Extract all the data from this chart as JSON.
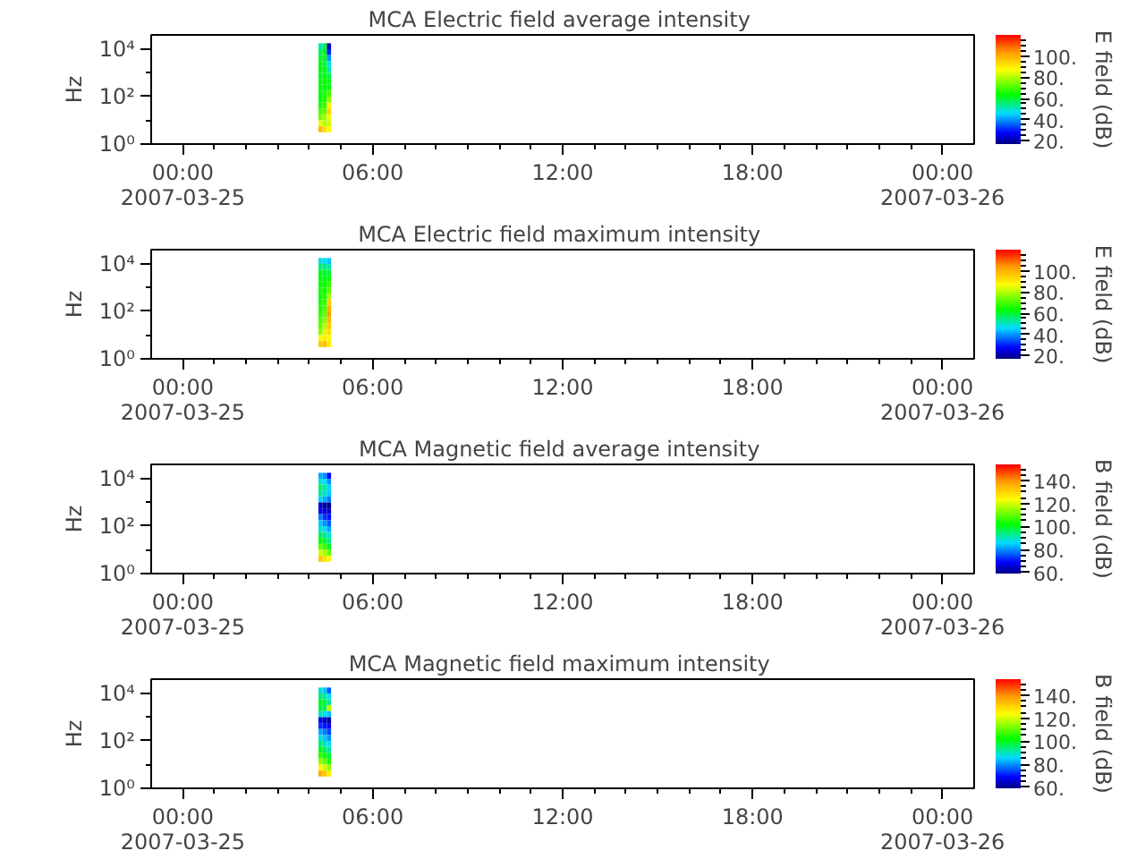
{
  "chart_data": [
    {
      "type": "scatter",
      "marker": "square",
      "title": "MCA  Electric field average intensity",
      "ylabel": "Hz",
      "clabel": "E field (dB)",
      "x": [
        "2007-03-25T04:21",
        "2007-03-25T04:29",
        "2007-03-25T04:37",
        "2007-03-25T04:21",
        "2007-03-25T04:29",
        "2007-03-25T04:37",
        "2007-03-25T04:21",
        "2007-03-25T04:29",
        "2007-03-25T04:37",
        "2007-03-25T04:21",
        "2007-03-25T04:29",
        "2007-03-25T04:37",
        "2007-03-25T04:21",
        "2007-03-25T04:29",
        "2007-03-25T04:37",
        "2007-03-25T04:21",
        "2007-03-25T04:29",
        "2007-03-25T04:37",
        "2007-03-25T04:21",
        "2007-03-25T04:29",
        "2007-03-25T04:37",
        "2007-03-25T04:21",
        "2007-03-25T04:29",
        "2007-03-25T04:37",
        "2007-03-25T04:21",
        "2007-03-25T04:29",
        "2007-03-25T04:37",
        "2007-03-25T04:21",
        "2007-03-25T04:29",
        "2007-03-25T04:37",
        "2007-03-25T04:21",
        "2007-03-25T04:29",
        "2007-03-25T04:37",
        "2007-03-25T04:21",
        "2007-03-25T04:29",
        "2007-03-25T04:37",
        "2007-03-25T04:21",
        "2007-03-25T04:29",
        "2007-03-25T04:37",
        "2007-03-25T04:21",
        "2007-03-25T04:29",
        "2007-03-25T04:37",
        "2007-03-25T04:21",
        "2007-03-25T04:29",
        "2007-03-25T04:37"
      ],
      "values": [
        13300,
        13300,
        13300,
        7500,
        7500,
        7500,
        4200,
        4200,
        4200,
        2400,
        2400,
        2400,
        1330,
        1330,
        1330,
        750,
        750,
        750,
        420,
        420,
        420,
        240,
        240,
        240,
        133,
        133,
        133,
        75,
        75,
        75,
        42,
        42,
        42,
        24,
        24,
        24,
        13.3,
        13.3,
        13.3,
        7.5,
        7.5,
        7.5,
        4.2,
        4.2,
        4.2
      ],
      "cvalues": [
        50,
        60,
        22,
        58,
        62,
        30,
        60,
        62,
        40,
        62,
        60,
        48,
        62,
        62,
        52,
        60,
        64,
        58,
        62,
        64,
        62,
        64,
        62,
        64,
        62,
        66,
        70,
        64,
        66,
        76,
        66,
        68,
        88,
        70,
        72,
        95,
        74,
        78,
        85,
        85,
        80,
        82,
        98,
        92,
        88
      ],
      "clim": [
        17,
        120
      ],
      "cticks": [
        {
          "value": 20,
          "label": "20."
        },
        {
          "value": 25,
          "label": null
        },
        {
          "value": 30,
          "label": null
        },
        {
          "value": 35,
          "label": null
        },
        {
          "value": 40,
          "label": "40."
        },
        {
          "value": 45,
          "label": null
        },
        {
          "value": 50,
          "label": null
        },
        {
          "value": 55,
          "label": null
        },
        {
          "value": 60,
          "label": "60."
        },
        {
          "value": 65,
          "label": null
        },
        {
          "value": 70,
          "label": null
        },
        {
          "value": 75,
          "label": null
        },
        {
          "value": 80,
          "label": "80."
        },
        {
          "value": 85,
          "label": null
        },
        {
          "value": 90,
          "label": null
        },
        {
          "value": 95,
          "label": null
        },
        {
          "value": 100,
          "label": "100."
        },
        {
          "value": 105,
          "label": null
        },
        {
          "value": 110,
          "label": null
        },
        {
          "value": 115,
          "label": null
        }
      ],
      "xlim": [
        "2007-03-24T23:00",
        "2007-03-26T01:00"
      ],
      "xticks": [
        {
          "value": "2007-03-25T00:00",
          "label": "00:00\n2007-03-25"
        },
        {
          "value": "2007-03-25T01:00",
          "label": null
        },
        {
          "value": "2007-03-25T02:00",
          "label": null
        },
        {
          "value": "2007-03-25T03:00",
          "label": null
        },
        {
          "value": "2007-03-25T04:00",
          "label": null
        },
        {
          "value": "2007-03-25T05:00",
          "label": null
        },
        {
          "value": "2007-03-25T06:00",
          "label": "06:00"
        },
        {
          "value": "2007-03-25T07:00",
          "label": null
        },
        {
          "value": "2007-03-25T08:00",
          "label": null
        },
        {
          "value": "2007-03-25T09:00",
          "label": null
        },
        {
          "value": "2007-03-25T10:00",
          "label": null
        },
        {
          "value": "2007-03-25T11:00",
          "label": null
        },
        {
          "value": "2007-03-25T12:00",
          "label": "12:00"
        },
        {
          "value": "2007-03-25T13:00",
          "label": null
        },
        {
          "value": "2007-03-25T14:00",
          "label": null
        },
        {
          "value": "2007-03-25T15:00",
          "label": null
        },
        {
          "value": "2007-03-25T16:00",
          "label": null
        },
        {
          "value": "2007-03-25T17:00",
          "label": null
        },
        {
          "value": "2007-03-25T18:00",
          "label": "18:00"
        },
        {
          "value": "2007-03-25T19:00",
          "label": null
        },
        {
          "value": "2007-03-25T20:00",
          "label": null
        },
        {
          "value": "2007-03-25T21:00",
          "label": null
        },
        {
          "value": "2007-03-25T22:00",
          "label": null
        },
        {
          "value": "2007-03-25T23:00",
          "label": null
        },
        {
          "value": "2007-03-26T00:00",
          "label": "00:00\n2007-03-26"
        }
      ],
      "ylim": [
        1,
        40000
      ],
      "yticks": [
        {
          "value": 1,
          "label": "10⁰"
        },
        {
          "value": 10,
          "label": null
        },
        {
          "value": 100,
          "label": "10²"
        },
        {
          "value": 1000,
          "label": null
        },
        {
          "value": 10000,
          "label": "10⁴"
        }
      ],
      "log": true
    },
    {
      "type": "scatter",
      "marker": "square",
      "title": "MCA  Electric field maximum intensity",
      "ylabel": "Hz",
      "clabel": "E field (dB)",
      "x": [
        "2007-03-25T04:21",
        "2007-03-25T04:29",
        "2007-03-25T04:37",
        "2007-03-25T04:21",
        "2007-03-25T04:29",
        "2007-03-25T04:37",
        "2007-03-25T04:21",
        "2007-03-25T04:29",
        "2007-03-25T04:37",
        "2007-03-25T04:21",
        "2007-03-25T04:29",
        "2007-03-25T04:37",
        "2007-03-25T04:21",
        "2007-03-25T04:29",
        "2007-03-25T04:37",
        "2007-03-25T04:21",
        "2007-03-25T04:29",
        "2007-03-25T04:37",
        "2007-03-25T04:21",
        "2007-03-25T04:29",
        "2007-03-25T04:37",
        "2007-03-25T04:21",
        "2007-03-25T04:29",
        "2007-03-25T04:37",
        "2007-03-25T04:21",
        "2007-03-25T04:29",
        "2007-03-25T04:37",
        "2007-03-25T04:21",
        "2007-03-25T04:29",
        "2007-03-25T04:37",
        "2007-03-25T04:21",
        "2007-03-25T04:29",
        "2007-03-25T04:37",
        "2007-03-25T04:21",
        "2007-03-25T04:29",
        "2007-03-25T04:37",
        "2007-03-25T04:21",
        "2007-03-25T04:29",
        "2007-03-25T04:37",
        "2007-03-25T04:21",
        "2007-03-25T04:29",
        "2007-03-25T04:37",
        "2007-03-25T04:21",
        "2007-03-25T04:29",
        "2007-03-25T04:37"
      ],
      "values": [
        13300,
        13300,
        13300,
        7500,
        7500,
        7500,
        4200,
        4200,
        4200,
        2400,
        2400,
        2400,
        1330,
        1330,
        1330,
        750,
        750,
        750,
        420,
        420,
        420,
        240,
        240,
        240,
        133,
        133,
        133,
        75,
        75,
        75,
        42,
        42,
        42,
        24,
        24,
        24,
        13.3,
        13.3,
        13.3,
        7.5,
        7.5,
        7.5,
        4.2,
        4.2,
        4.2
      ],
      "cvalues": [
        48,
        46,
        44,
        56,
        54,
        52,
        62,
        60,
        60,
        64,
        62,
        64,
        64,
        64,
        68,
        66,
        64,
        72,
        64,
        66,
        78,
        66,
        68,
        95,
        66,
        70,
        100,
        68,
        72,
        102,
        70,
        76,
        98,
        72,
        80,
        96,
        76,
        84,
        92,
        86,
        90,
        88,
        96,
        98,
        90
      ],
      "clim": [
        17,
        120
      ],
      "cticks": [
        {
          "value": 20,
          "label": "20."
        },
        {
          "value": 25,
          "label": null
        },
        {
          "value": 30,
          "label": null
        },
        {
          "value": 35,
          "label": null
        },
        {
          "value": 40,
          "label": "40."
        },
        {
          "value": 45,
          "label": null
        },
        {
          "value": 50,
          "label": null
        },
        {
          "value": 55,
          "label": null
        },
        {
          "value": 60,
          "label": "60."
        },
        {
          "value": 65,
          "label": null
        },
        {
          "value": 70,
          "label": null
        },
        {
          "value": 75,
          "label": null
        },
        {
          "value": 80,
          "label": "80."
        },
        {
          "value": 85,
          "label": null
        },
        {
          "value": 90,
          "label": null
        },
        {
          "value": 95,
          "label": null
        },
        {
          "value": 100,
          "label": "100."
        },
        {
          "value": 105,
          "label": null
        },
        {
          "value": 110,
          "label": null
        },
        {
          "value": 115,
          "label": null
        }
      ],
      "xlim": [
        "2007-03-24T23:00",
        "2007-03-26T01:00"
      ],
      "xticks": [
        {
          "value": "2007-03-25T00:00",
          "label": "00:00\n2007-03-25"
        },
        {
          "value": "2007-03-25T01:00",
          "label": null
        },
        {
          "value": "2007-03-25T02:00",
          "label": null
        },
        {
          "value": "2007-03-25T03:00",
          "label": null
        },
        {
          "value": "2007-03-25T04:00",
          "label": null
        },
        {
          "value": "2007-03-25T05:00",
          "label": null
        },
        {
          "value": "2007-03-25T06:00",
          "label": "06:00"
        },
        {
          "value": "2007-03-25T07:00",
          "label": null
        },
        {
          "value": "2007-03-25T08:00",
          "label": null
        },
        {
          "value": "2007-03-25T09:00",
          "label": null
        },
        {
          "value": "2007-03-25T10:00",
          "label": null
        },
        {
          "value": "2007-03-25T11:00",
          "label": null
        },
        {
          "value": "2007-03-25T12:00",
          "label": "12:00"
        },
        {
          "value": "2007-03-25T13:00",
          "label": null
        },
        {
          "value": "2007-03-25T14:00",
          "label": null
        },
        {
          "value": "2007-03-25T15:00",
          "label": null
        },
        {
          "value": "2007-03-25T16:00",
          "label": null
        },
        {
          "value": "2007-03-25T17:00",
          "label": null
        },
        {
          "value": "2007-03-25T18:00",
          "label": "18:00"
        },
        {
          "value": "2007-03-25T19:00",
          "label": null
        },
        {
          "value": "2007-03-25T20:00",
          "label": null
        },
        {
          "value": "2007-03-25T21:00",
          "label": null
        },
        {
          "value": "2007-03-25T22:00",
          "label": null
        },
        {
          "value": "2007-03-25T23:00",
          "label": null
        },
        {
          "value": "2007-03-26T00:00",
          "label": "00:00\n2007-03-26"
        }
      ],
      "ylim": [
        1,
        40000
      ],
      "yticks": [
        {
          "value": 1,
          "label": "10⁰"
        },
        {
          "value": 10,
          "label": null
        },
        {
          "value": 100,
          "label": "10²"
        },
        {
          "value": 1000,
          "label": null
        },
        {
          "value": 10000,
          "label": "10⁴"
        }
      ],
      "log": true
    },
    {
      "type": "scatter",
      "marker": "square",
      "title": "MCA  Magnetic field average intensity",
      "ylabel": "Hz",
      "clabel": "B field (dB)",
      "x": [
        "2007-03-25T04:21",
        "2007-03-25T04:29",
        "2007-03-25T04:37",
        "2007-03-25T04:21",
        "2007-03-25T04:29",
        "2007-03-25T04:37",
        "2007-03-25T04:21",
        "2007-03-25T04:29",
        "2007-03-25T04:37",
        "2007-03-25T04:21",
        "2007-03-25T04:29",
        "2007-03-25T04:37",
        "2007-03-25T04:21",
        "2007-03-25T04:29",
        "2007-03-25T04:37",
        "2007-03-25T04:21",
        "2007-03-25T04:29",
        "2007-03-25T04:37",
        "2007-03-25T04:21",
        "2007-03-25T04:29",
        "2007-03-25T04:37",
        "2007-03-25T04:21",
        "2007-03-25T04:29",
        "2007-03-25T04:37",
        "2007-03-25T04:21",
        "2007-03-25T04:29",
        "2007-03-25T04:37",
        "2007-03-25T04:21",
        "2007-03-25T04:29",
        "2007-03-25T04:37",
        "2007-03-25T04:21",
        "2007-03-25T04:29",
        "2007-03-25T04:37",
        "2007-03-25T04:21",
        "2007-03-25T04:29",
        "2007-03-25T04:37",
        "2007-03-25T04:21",
        "2007-03-25T04:29",
        "2007-03-25T04:37",
        "2007-03-25T04:21",
        "2007-03-25T04:29",
        "2007-03-25T04:37",
        "2007-03-25T04:21",
        "2007-03-25T04:29",
        "2007-03-25T04:37"
      ],
      "values": [
        13300,
        13300,
        13300,
        7500,
        7500,
        7500,
        4200,
        4200,
        4200,
        2400,
        2400,
        2400,
        1330,
        1330,
        1330,
        750,
        750,
        750,
        420,
        420,
        420,
        240,
        240,
        240,
        133,
        133,
        133,
        75,
        75,
        75,
        42,
        42,
        42,
        24,
        24,
        24,
        13.3,
        13.3,
        13.3,
        7.5,
        7.5,
        7.5,
        4.2,
        4.2,
        4.2
      ],
      "cvalues": [
        82,
        80,
        68,
        88,
        86,
        80,
        95,
        92,
        85,
        92,
        88,
        84,
        85,
        82,
        78,
        64,
        62,
        60,
        68,
        66,
        64,
        78,
        72,
        70,
        84,
        80,
        76,
        90,
        86,
        82,
        96,
        92,
        88,
        102,
        98,
        94,
        110,
        106,
        100,
        120,
        116,
        110,
        132,
        128,
        124
      ],
      "clim": [
        59,
        154
      ],
      "cticks": [
        {
          "value": 60,
          "label": "60."
        },
        {
          "value": 65,
          "label": null
        },
        {
          "value": 70,
          "label": null
        },
        {
          "value": 75,
          "label": null
        },
        {
          "value": 80,
          "label": "80."
        },
        {
          "value": 85,
          "label": null
        },
        {
          "value": 90,
          "label": null
        },
        {
          "value": 95,
          "label": null
        },
        {
          "value": 100,
          "label": "100."
        },
        {
          "value": 105,
          "label": null
        },
        {
          "value": 110,
          "label": null
        },
        {
          "value": 115,
          "label": null
        },
        {
          "value": 120,
          "label": "120."
        },
        {
          "value": 125,
          "label": null
        },
        {
          "value": 130,
          "label": null
        },
        {
          "value": 135,
          "label": null
        },
        {
          "value": 140,
          "label": "140."
        },
        {
          "value": 145,
          "label": null
        },
        {
          "value": 150,
          "label": null
        }
      ],
      "xlim": [
        "2007-03-24T23:00",
        "2007-03-26T01:00"
      ],
      "xticks": [
        {
          "value": "2007-03-25T00:00",
          "label": "00:00\n2007-03-25"
        },
        {
          "value": "2007-03-25T01:00",
          "label": null
        },
        {
          "value": "2007-03-25T02:00",
          "label": null
        },
        {
          "value": "2007-03-25T03:00",
          "label": null
        },
        {
          "value": "2007-03-25T04:00",
          "label": null
        },
        {
          "value": "2007-03-25T05:00",
          "label": null
        },
        {
          "value": "2007-03-25T06:00",
          "label": "06:00"
        },
        {
          "value": "2007-03-25T07:00",
          "label": null
        },
        {
          "value": "2007-03-25T08:00",
          "label": null
        },
        {
          "value": "2007-03-25T09:00",
          "label": null
        },
        {
          "value": "2007-03-25T10:00",
          "label": null
        },
        {
          "value": "2007-03-25T11:00",
          "label": null
        },
        {
          "value": "2007-03-25T12:00",
          "label": "12:00"
        },
        {
          "value": "2007-03-25T13:00",
          "label": null
        },
        {
          "value": "2007-03-25T14:00",
          "label": null
        },
        {
          "value": "2007-03-25T15:00",
          "label": null
        },
        {
          "value": "2007-03-25T16:00",
          "label": null
        },
        {
          "value": "2007-03-25T17:00",
          "label": null
        },
        {
          "value": "2007-03-25T18:00",
          "label": "18:00"
        },
        {
          "value": "2007-03-25T19:00",
          "label": null
        },
        {
          "value": "2007-03-25T20:00",
          "label": null
        },
        {
          "value": "2007-03-25T21:00",
          "label": null
        },
        {
          "value": "2007-03-25T22:00",
          "label": null
        },
        {
          "value": "2007-03-25T23:00",
          "label": null
        },
        {
          "value": "2007-03-26T00:00",
          "label": "00:00\n2007-03-26"
        }
      ],
      "ylim": [
        1,
        40000
      ],
      "yticks": [
        {
          "value": 1,
          "label": "10⁰"
        },
        {
          "value": 10,
          "label": null
        },
        {
          "value": 100,
          "label": "10²"
        },
        {
          "value": 1000,
          "label": null
        },
        {
          "value": 10000,
          "label": "10⁴"
        }
      ],
      "log": true
    },
    {
      "type": "scatter",
      "marker": "square",
      "title": "MCA  Magnetic field maximum intensity",
      "ylabel": "Hz",
      "clabel": "B field (dB)",
      "x": [
        "2007-03-25T04:21",
        "2007-03-25T04:29",
        "2007-03-25T04:37",
        "2007-03-25T04:21",
        "2007-03-25T04:29",
        "2007-03-25T04:37",
        "2007-03-25T04:21",
        "2007-03-25T04:29",
        "2007-03-25T04:37",
        "2007-03-25T04:21",
        "2007-03-25T04:29",
        "2007-03-25T04:37",
        "2007-03-25T04:21",
        "2007-03-25T04:29",
        "2007-03-25T04:37",
        "2007-03-25T04:21",
        "2007-03-25T04:29",
        "2007-03-25T04:37",
        "2007-03-25T04:21",
        "2007-03-25T04:29",
        "2007-03-25T04:37",
        "2007-03-25T04:21",
        "2007-03-25T04:29",
        "2007-03-25T04:37",
        "2007-03-25T04:21",
        "2007-03-25T04:29",
        "2007-03-25T04:37",
        "2007-03-25T04:21",
        "2007-03-25T04:29",
        "2007-03-25T04:37",
        "2007-03-25T04:21",
        "2007-03-25T04:29",
        "2007-03-25T04:37",
        "2007-03-25T04:21",
        "2007-03-25T04:29",
        "2007-03-25T04:37",
        "2007-03-25T04:21",
        "2007-03-25T04:29",
        "2007-03-25T04:37",
        "2007-03-25T04:21",
        "2007-03-25T04:29",
        "2007-03-25T04:37",
        "2007-03-25T04:21",
        "2007-03-25T04:29",
        "2007-03-25T04:37"
      ],
      "values": [
        13300,
        13300,
        13300,
        7500,
        7500,
        7500,
        4200,
        4200,
        4200,
        2400,
        2400,
        2400,
        1330,
        1330,
        1330,
        750,
        750,
        750,
        420,
        420,
        420,
        240,
        240,
        240,
        133,
        133,
        133,
        75,
        75,
        75,
        42,
        42,
        42,
        24,
        24,
        24,
        13.3,
        13.3,
        13.3,
        7.5,
        7.5,
        7.5,
        4.2,
        4.2,
        4.2
      ],
      "cvalues": [
        88,
        84,
        76,
        94,
        92,
        86,
        100,
        98,
        92,
        98,
        96,
        118,
        90,
        86,
        84,
        68,
        64,
        62,
        72,
        70,
        68,
        82,
        78,
        74,
        88,
        84,
        80,
        94,
        90,
        86,
        100,
        96,
        92,
        106,
        102,
        98,
        114,
        110,
        104,
        124,
        120,
        114,
        136,
        132,
        126
      ],
      "clim": [
        59,
        154
      ],
      "cticks": [
        {
          "value": 60,
          "label": "60."
        },
        {
          "value": 65,
          "label": null
        },
        {
          "value": 70,
          "label": null
        },
        {
          "value": 75,
          "label": null
        },
        {
          "value": 80,
          "label": "80."
        },
        {
          "value": 85,
          "label": null
        },
        {
          "value": 90,
          "label": null
        },
        {
          "value": 95,
          "label": null
        },
        {
          "value": 100,
          "label": "100."
        },
        {
          "value": 105,
          "label": null
        },
        {
          "value": 110,
          "label": null
        },
        {
          "value": 115,
          "label": null
        },
        {
          "value": 120,
          "label": "120."
        },
        {
          "value": 125,
          "label": null
        },
        {
          "value": 130,
          "label": null
        },
        {
          "value": 135,
          "label": null
        },
        {
          "value": 140,
          "label": "140."
        },
        {
          "value": 145,
          "label": null
        },
        {
          "value": 150,
          "label": null
        }
      ],
      "xlim": [
        "2007-03-24T23:00",
        "2007-03-26T01:00"
      ],
      "xticks": [
        {
          "value": "2007-03-25T00:00",
          "label": "00:00\n2007-03-25"
        },
        {
          "value": "2007-03-25T01:00",
          "label": null
        },
        {
          "value": "2007-03-25T02:00",
          "label": null
        },
        {
          "value": "2007-03-25T03:00",
          "label": null
        },
        {
          "value": "2007-03-25T04:00",
          "label": null
        },
        {
          "value": "2007-03-25T05:00",
          "label": null
        },
        {
          "value": "2007-03-25T06:00",
          "label": "06:00"
        },
        {
          "value": "2007-03-25T07:00",
          "label": null
        },
        {
          "value": "2007-03-25T08:00",
          "label": null
        },
        {
          "value": "2007-03-25T09:00",
          "label": null
        },
        {
          "value": "2007-03-25T10:00",
          "label": null
        },
        {
          "value": "2007-03-25T11:00",
          "label": null
        },
        {
          "value": "2007-03-25T12:00",
          "label": "12:00"
        },
        {
          "value": "2007-03-25T13:00",
          "label": null
        },
        {
          "value": "2007-03-25T14:00",
          "label": null
        },
        {
          "value": "2007-03-25T15:00",
          "label": null
        },
        {
          "value": "2007-03-25T16:00",
          "label": null
        },
        {
          "value": "2007-03-25T17:00",
          "label": null
        },
        {
          "value": "2007-03-25T18:00",
          "label": "18:00"
        },
        {
          "value": "2007-03-25T19:00",
          "label": null
        },
        {
          "value": "2007-03-25T20:00",
          "label": null
        },
        {
          "value": "2007-03-25T21:00",
          "label": null
        },
        {
          "value": "2007-03-25T22:00",
          "label": null
        },
        {
          "value": "2007-03-25T23:00",
          "label": null
        },
        {
          "value": "2007-03-26T00:00",
          "label": "00:00\n2007-03-26"
        }
      ],
      "ylim": [
        1,
        40000
      ],
      "yticks": [
        {
          "value": 1,
          "label": "10⁰"
        },
        {
          "value": 10,
          "label": null
        },
        {
          "value": 100,
          "label": "10²"
        },
        {
          "value": 1000,
          "label": null
        },
        {
          "value": 10000,
          "label": "10⁴"
        }
      ],
      "log": true
    }
  ]
}
